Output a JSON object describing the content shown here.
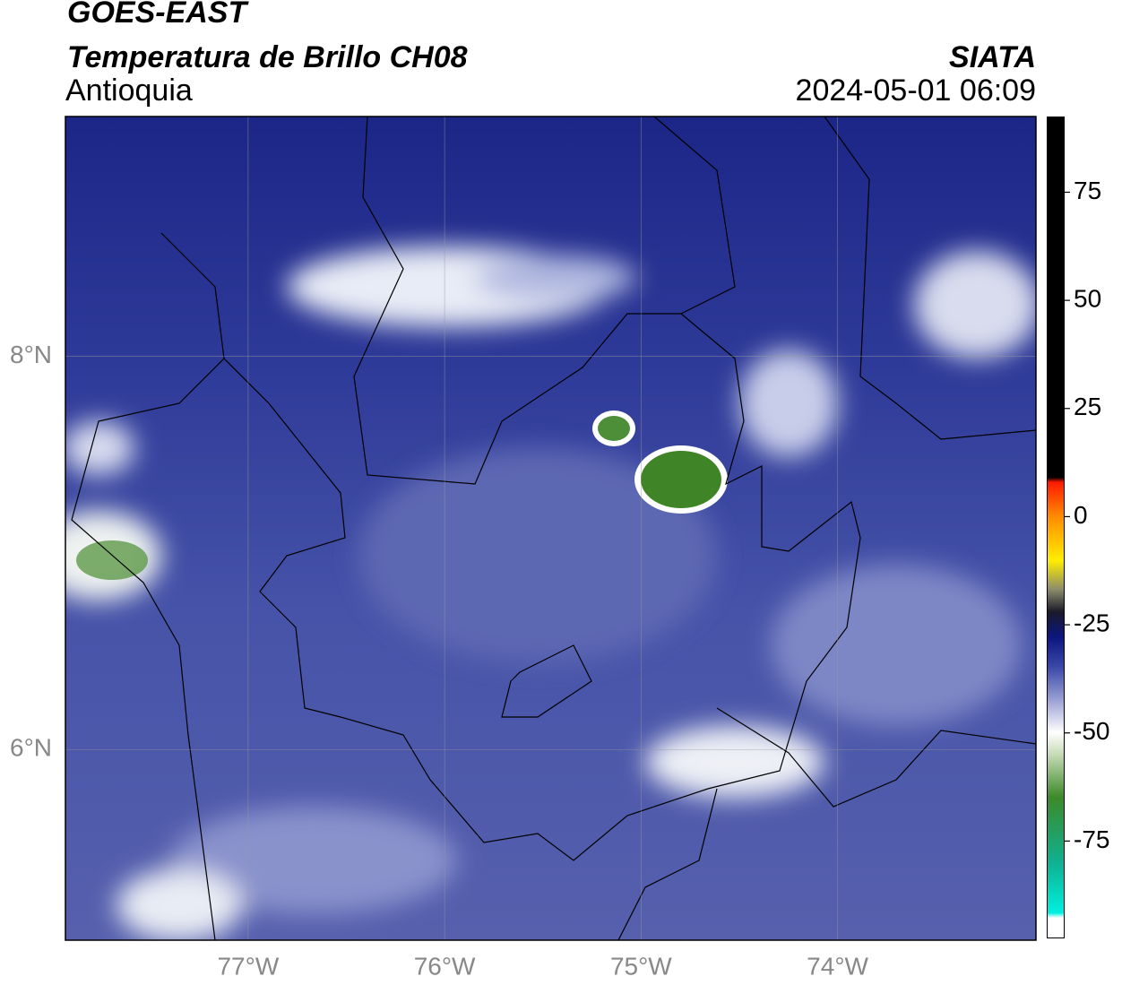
{
  "header": {
    "title": "GOES-EAST",
    "subtitle": "Temperatura de Brillo CH08",
    "region": "Antioquia",
    "source": "SIATA",
    "datetime": "2024-05-01 06:09"
  },
  "map": {
    "xlim": [
      -77.93,
      -72.99
    ],
    "ylim": [
      5.03,
      9.22
    ],
    "xticks": [
      {
        "value": -77,
        "label": "77°W"
      },
      {
        "value": -76,
        "label": "76°W"
      },
      {
        "value": -75,
        "label": "75°W"
      },
      {
        "value": -74,
        "label": "74°W"
      }
    ],
    "yticks": [
      {
        "value": 8,
        "label": "8°N"
      },
      {
        "value": 6,
        "label": "6°N"
      }
    ],
    "grid": true
  },
  "colorbar": {
    "clim": [
      -97.5,
      92.5
    ],
    "ticks": [
      75,
      50,
      25,
      0,
      -25,
      -50,
      -75
    ]
  }
}
